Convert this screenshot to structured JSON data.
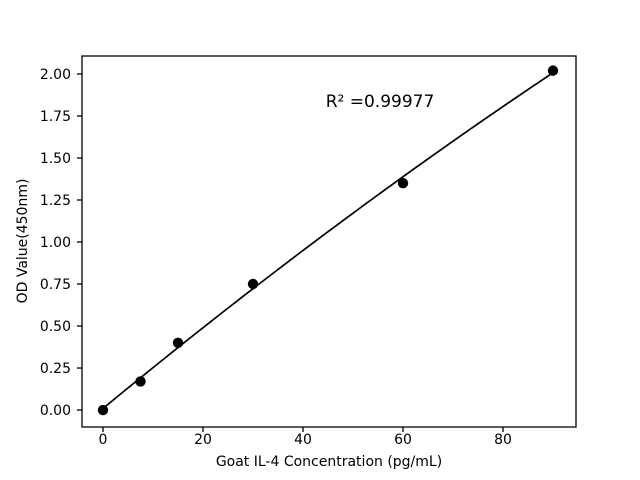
{
  "figure": {
    "background": "#ffffff"
  },
  "chart_data": {
    "type": "scatter",
    "xlabel": "Goat IL-4 Concentration (pg/mL)",
    "ylabel": "OD Value(450nm)",
    "x": [
      0,
      7.5,
      15,
      30,
      60,
      90
    ],
    "y": [
      0.0,
      0.17,
      0.4,
      0.75,
      1.35,
      2.02
    ],
    "fit": {
      "type": "quadratic",
      "coefficients": {
        "a": -2.61e-05,
        "b": 0.02455,
        "c": 0.0093
      },
      "x_range": [
        0,
        90
      ],
      "annotation": "R² =0.99977"
    },
    "xticks": {
      "values": [
        0,
        20,
        40,
        60,
        80
      ],
      "labels": [
        "0",
        "20",
        "40",
        "60",
        "80"
      ]
    },
    "yticks": {
      "values": [
        0,
        0.25,
        0.5,
        0.75,
        1.0,
        1.25,
        1.5,
        1.75,
        2.0
      ],
      "labels": [
        "0.00",
        "0.25",
        "0.50",
        "0.75",
        "1.00",
        "1.25",
        "1.50",
        "1.75",
        "2.00"
      ]
    },
    "xlim": [
      -4.2,
      94.6
    ],
    "ylim": [
      -0.101,
      2.107
    ],
    "grid": false,
    "legend_position": "none",
    "colors": {
      "marker": "#000000",
      "line": "#000000",
      "axis": "#000000",
      "background": "#ffffff"
    },
    "marker_radius": 5.2,
    "line_width": 1.7
  }
}
